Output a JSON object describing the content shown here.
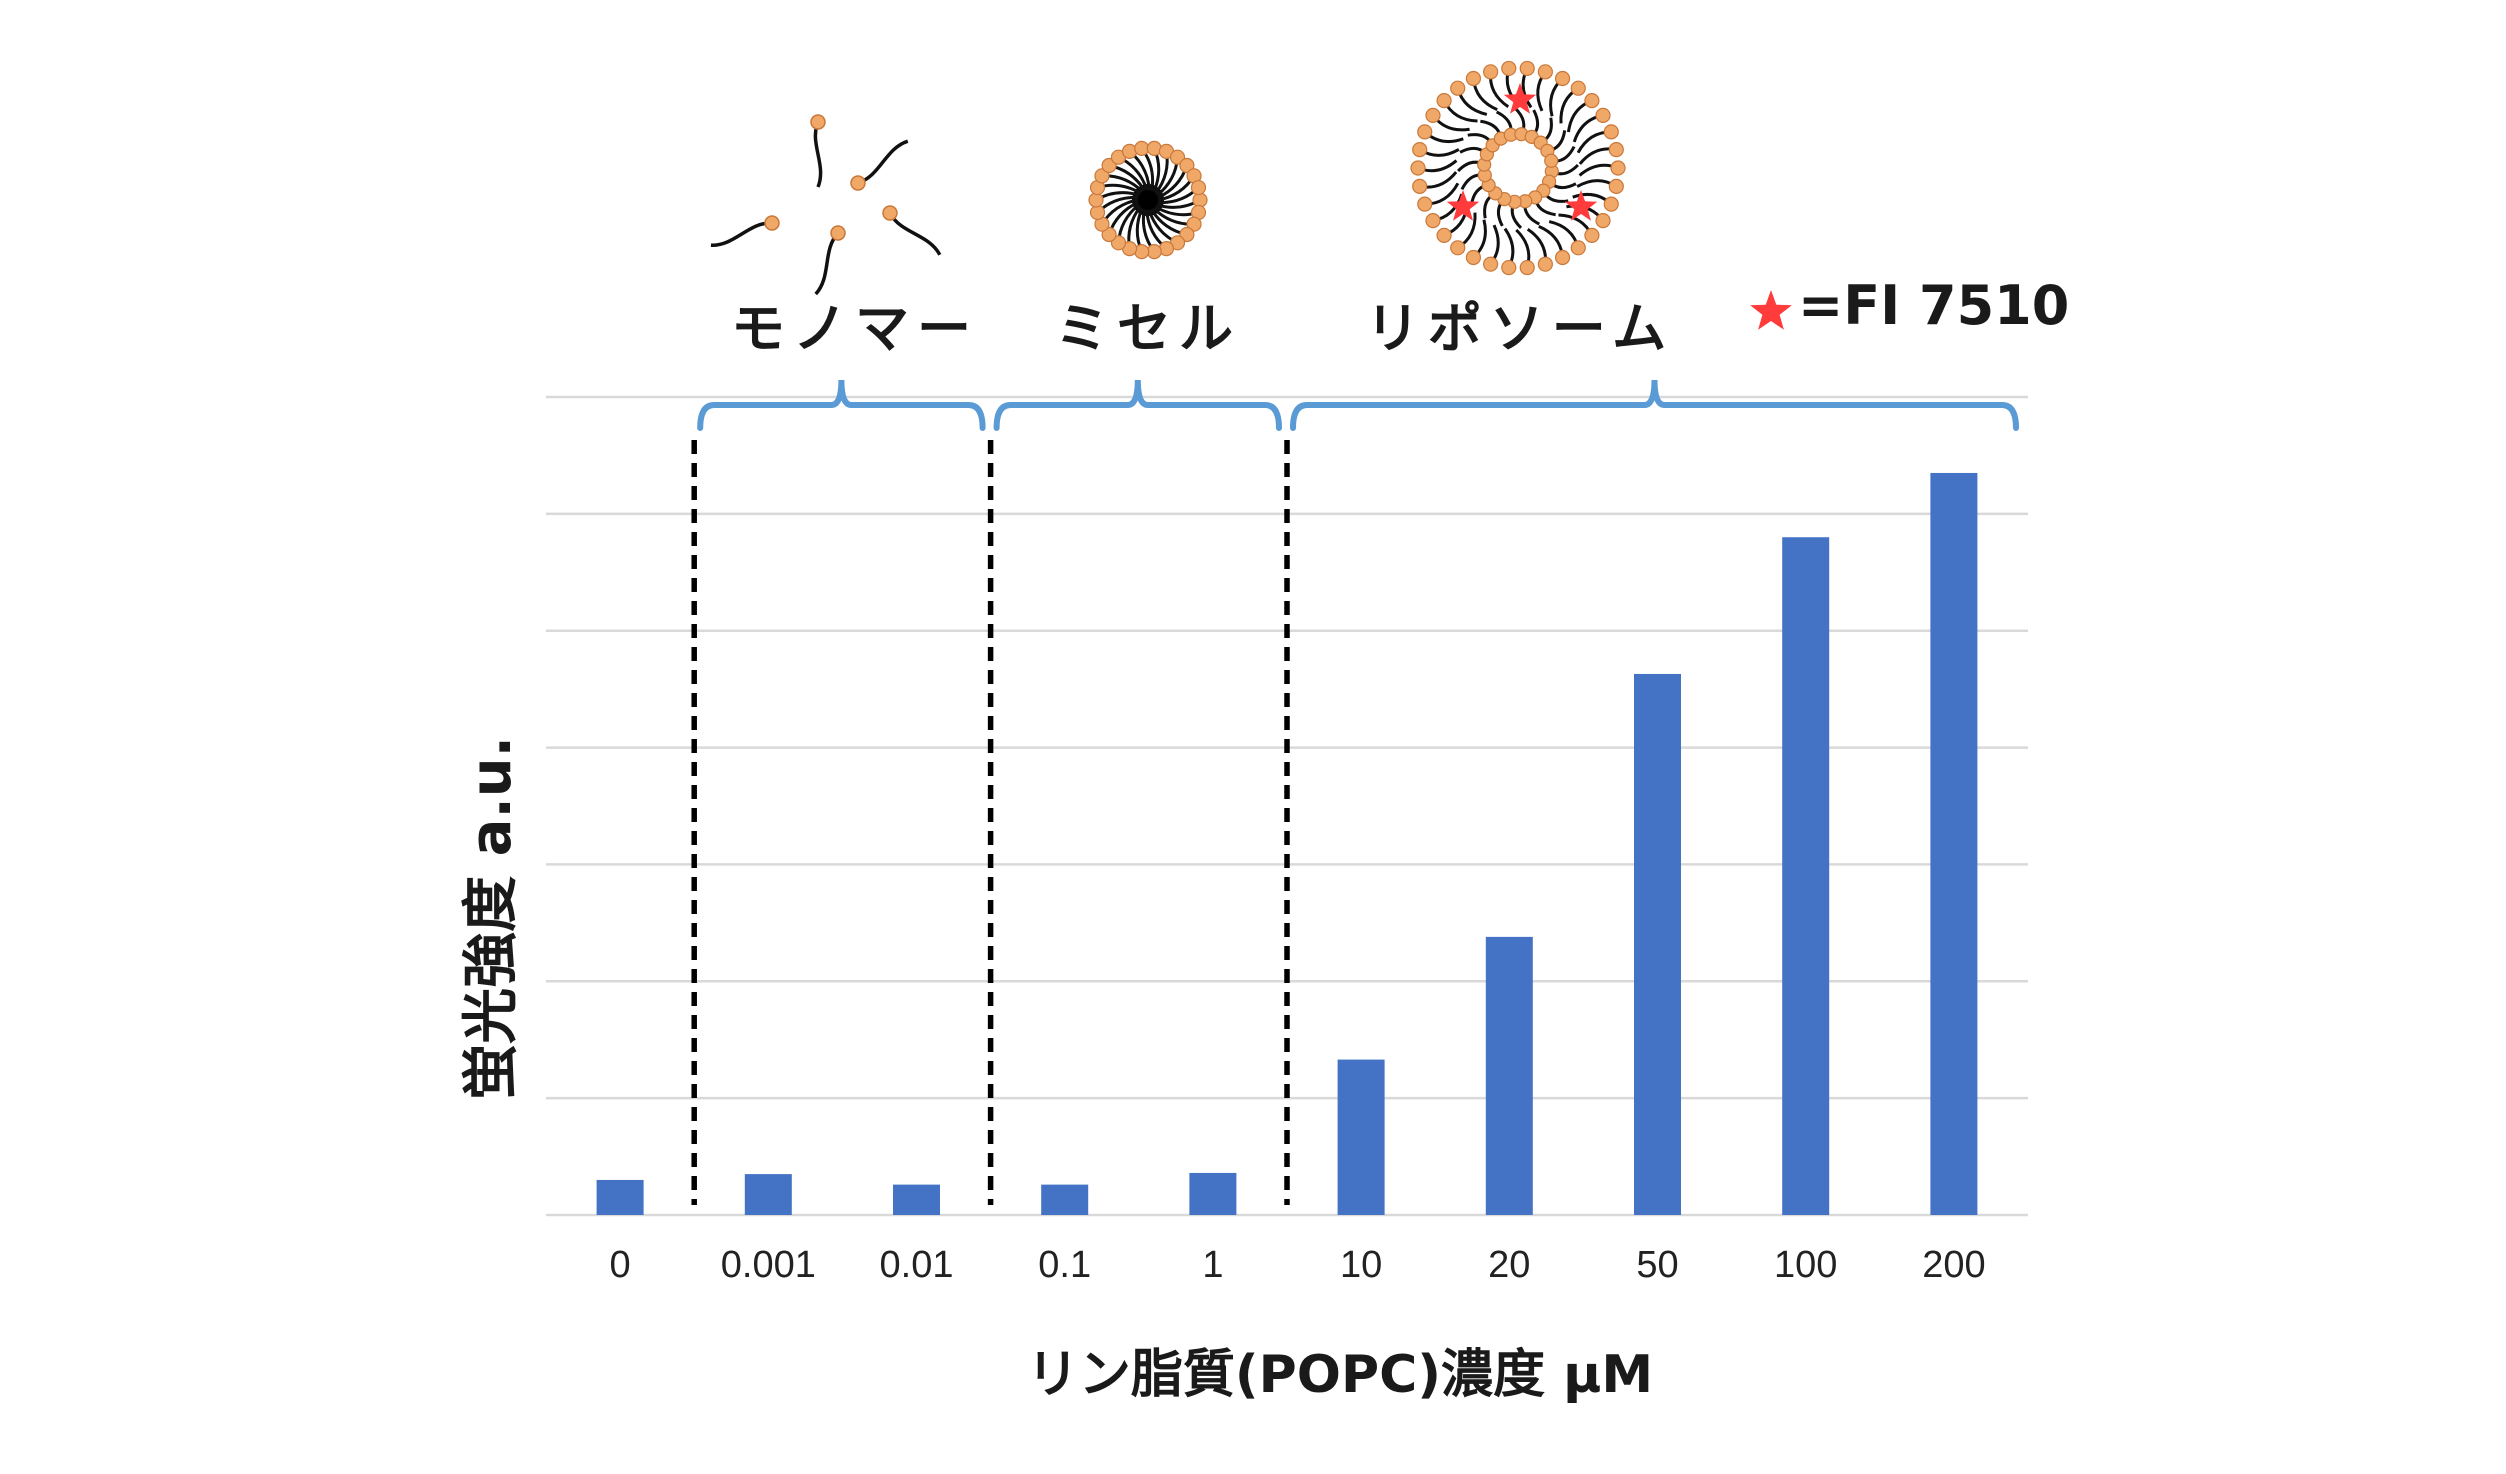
{
  "chart_data": {
    "type": "bar",
    "title": "",
    "xlabel": "リン脂質(POPC)濃度 μM",
    "ylabel": "蛍光強度 a.u.",
    "categories": [
      "0",
      "0.001",
      "0.01",
      "0.1",
      "1",
      "10",
      "20",
      "50",
      "100",
      "200"
    ],
    "values": [
      0.3,
      0.35,
      0.26,
      0.26,
      0.36,
      1.33,
      2.38,
      4.63,
      5.8,
      6.35
    ],
    "ylim": [
      0,
      7
    ],
    "grid": true,
    "bar_color": "#4472C4",
    "regions": [
      {
        "label": "モノマー",
        "from": 1,
        "to": 2
      },
      {
        "label": "ミセル",
        "from": 3,
        "to": 4
      },
      {
        "label": "リポソーム",
        "from": 5,
        "to": 9
      }
    ],
    "legend": {
      "marker": "star",
      "text": "=FI 7510"
    },
    "colors": {
      "brace": "#5B9BD5",
      "lipid_head": "#F0A868",
      "star": "#FF3B3B"
    }
  }
}
